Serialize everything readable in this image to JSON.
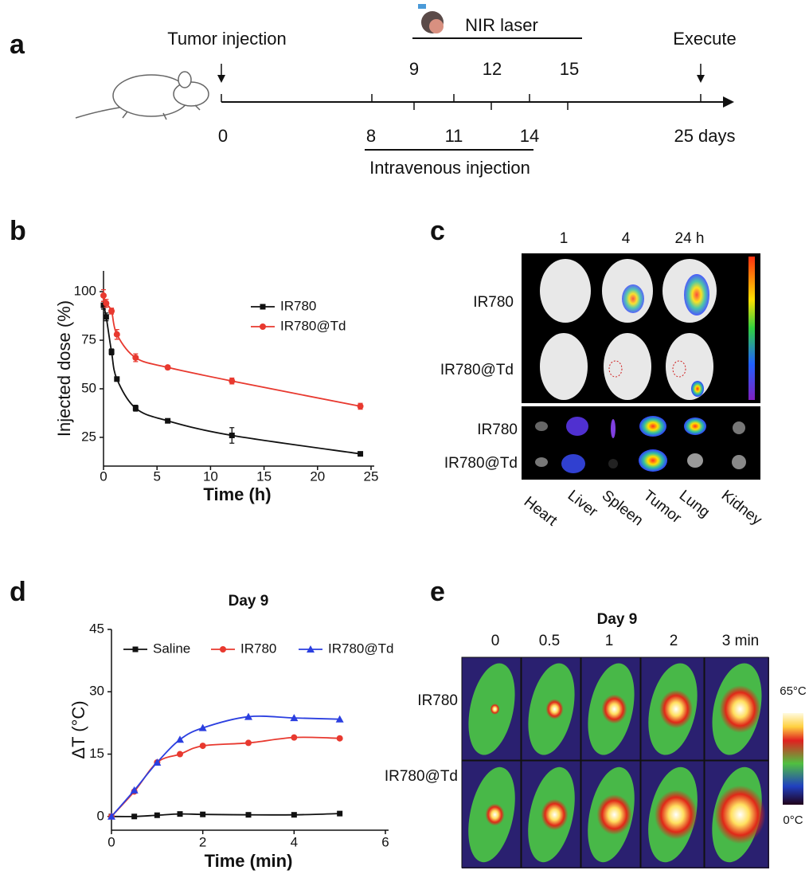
{
  "panel_labels": [
    "a",
    "b",
    "c",
    "d",
    "e"
  ],
  "timeline": {
    "start_event": "Tumor injection",
    "end_event": "Execute",
    "laser_label": "NIR laser",
    "laser_days": [
      "9",
      "12",
      "15"
    ],
    "injection_days": [
      "8",
      "11",
      "14"
    ],
    "start_day": "0",
    "end_day": "25 days",
    "injection_label": "Intravenous injection"
  },
  "chart_data": [
    {
      "type": "line",
      "xlabel": "Time (h)",
      "ylabel": "Injected dose (%)",
      "x": [
        0,
        0.25,
        0.75,
        1.25,
        3,
        6,
        12,
        24
      ],
      "series": [
        {
          "name": "IR780",
          "color": "#111111",
          "marker": "square",
          "values": [
            93,
            87,
            69,
            55,
            40,
            33.5,
            26,
            16.5
          ],
          "errors": [
            2,
            2,
            1.5,
            1,
            1.5,
            1,
            4,
            0.8
          ]
        },
        {
          "name": "IR780@Td",
          "color": "#e8392f",
          "marker": "circle",
          "values": [
            98,
            94,
            90,
            78,
            66,
            61,
            54,
            41
          ],
          "errors": [
            3,
            2,
            1.5,
            2.5,
            2,
            1,
            1.5,
            1.5
          ]
        }
      ],
      "xlim": [
        0,
        25
      ],
      "ylim": [
        10.2,
        110.7
      ],
      "xticks": [
        0,
        5,
        10,
        15,
        20,
        25
      ],
      "yticks": [
        25,
        50,
        75,
        100
      ],
      "legend": "upper right"
    },
    {
      "type": "line",
      "title": "Day 9",
      "xlabel": "Time (min)",
      "ylabel": "ΔT (°C)",
      "x": [
        0,
        0.5,
        1,
        1.5,
        2,
        3,
        4,
        5
      ],
      "series": [
        {
          "name": "Saline",
          "color": "#111111",
          "marker": "square",
          "values": [
            0,
            0,
            0.3,
            0.6,
            0.5,
            0.4,
            0.4,
            0.7
          ]
        },
        {
          "name": "IR780",
          "color": "#e8392f",
          "marker": "circle",
          "values": [
            0,
            6,
            13,
            15,
            17,
            17.7,
            19,
            18.8
          ]
        },
        {
          "name": "IR780@Td",
          "color": "#2b3fe0",
          "marker": "triangle",
          "values": [
            0,
            6.3,
            13,
            18.5,
            21.3,
            24,
            23.7,
            23.4
          ]
        }
      ],
      "xlim": [
        0,
        6
      ],
      "ylim": [
        -3.3,
        45
      ],
      "xticks": [
        0,
        2,
        4,
        6
      ],
      "yticks": [
        0,
        15,
        30,
        45
      ],
      "legend": "upper center"
    }
  ],
  "panel_c": {
    "columns": [
      "1",
      "4",
      "24 h"
    ],
    "rows": [
      "IR780",
      "IR780@Td"
    ],
    "organ_rows": [
      "IR780",
      "IR780@Td"
    ],
    "organs": [
      "Heart",
      "Liver",
      "Spleen",
      "Tumor",
      "Lung",
      "Kidney"
    ]
  },
  "panel_e": {
    "title": "Day 9",
    "columns": [
      "0",
      "0.5",
      "1",
      "2",
      "3 min"
    ],
    "rows": [
      "IR780",
      "IR780@Td"
    ],
    "scale_max": "65°C",
    "scale_min": "0°C"
  }
}
